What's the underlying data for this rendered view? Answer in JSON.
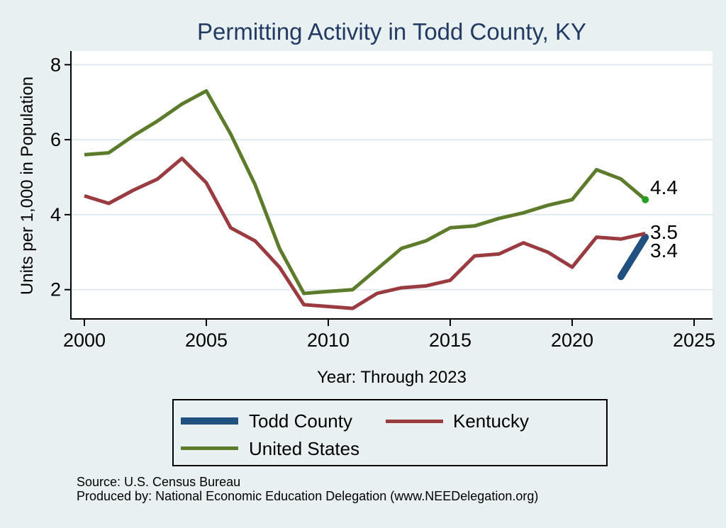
{
  "figure": {
    "title": "Permitting Activity in Todd County, KY",
    "x_axis_label": "Year: Through 2023",
    "y_axis_label": "Units per 1,000 in Population",
    "source_line1": "Source: U.S. Census Bureau",
    "source_line2": "Produced by: National Economic Education Delegation (www.NEEDelegation.org)"
  },
  "colors": {
    "background": "#e9f0f2",
    "plot_background": "#ffffff",
    "gridline": "#dfeaee",
    "axis": "#000000",
    "title_text": "#233b63",
    "todd_county": "#1f5080",
    "kentucky": "#9a3b41",
    "united_states": "#5c7c2c",
    "us_end_marker": "#22a022"
  },
  "chart_data": {
    "type": "line",
    "title": "Permitting Activity in Todd County, KY",
    "xlabel": "Year: Through 2023",
    "ylabel": "Units per 1,000 in Population",
    "grid": "horizontal",
    "legend_position": "bottom",
    "x": [
      2000,
      2001,
      2002,
      2003,
      2004,
      2005,
      2006,
      2007,
      2008,
      2009,
      2010,
      2011,
      2012,
      2013,
      2014,
      2015,
      2016,
      2017,
      2018,
      2019,
      2020,
      2021,
      2022,
      2023
    ],
    "x_ticks": [
      2000,
      2005,
      2010,
      2015,
      2020,
      2025
    ],
    "y_ticks": [
      2,
      4,
      6,
      8
    ],
    "xlim": [
      1999.4,
      2025.8
    ],
    "ylim": [
      1.2,
      8.35
    ],
    "series": [
      {
        "name": "Todd County",
        "color": "#1f5080",
        "width": 10,
        "linecap": "round",
        "values": [
          null,
          null,
          null,
          null,
          null,
          null,
          null,
          null,
          null,
          null,
          null,
          null,
          null,
          null,
          null,
          null,
          null,
          null,
          null,
          null,
          null,
          null,
          2.35,
          3.4
        ]
      },
      {
        "name": "Kentucky",
        "color": "#9a3b41",
        "width": 5,
        "values": [
          4.5,
          4.3,
          4.65,
          4.95,
          5.5,
          4.85,
          3.65,
          3.3,
          2.6,
          1.6,
          1.55,
          1.5,
          1.9,
          2.05,
          2.1,
          2.25,
          2.9,
          2.95,
          3.25,
          3.0,
          2.6,
          3.4,
          3.35,
          3.5
        ]
      },
      {
        "name": "United States",
        "color": "#5c7c2c",
        "width": 5,
        "end_marker_color": "#22a022",
        "values": [
          5.6,
          5.65,
          6.1,
          6.5,
          6.95,
          7.3,
          6.15,
          4.8,
          3.1,
          1.9,
          1.95,
          2.0,
          2.55,
          3.1,
          3.3,
          3.65,
          3.7,
          3.9,
          4.05,
          4.25,
          4.4,
          5.2,
          4.95,
          4.4
        ]
      }
    ],
    "end_labels": [
      {
        "text": "4.4",
        "y_value": 4.74
      },
      {
        "text": "3.5",
        "y_value": 3.54
      },
      {
        "text": "3.4",
        "y_value": 3.05
      }
    ]
  }
}
